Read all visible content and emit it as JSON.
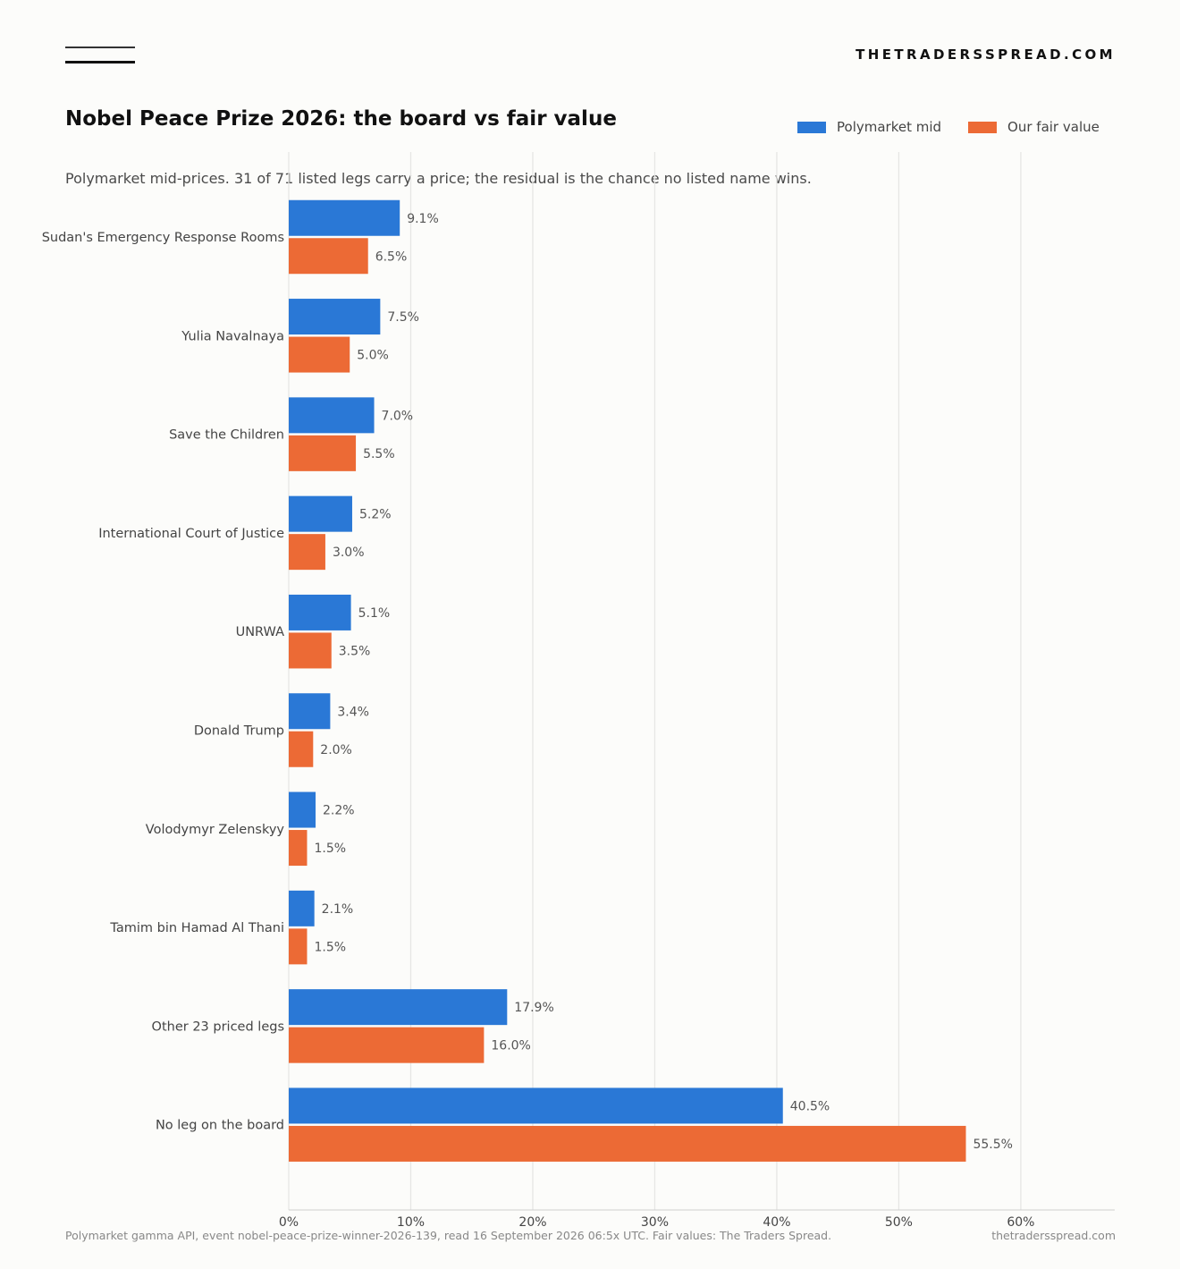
{
  "header": {
    "brand": "THETRADERSSPREAD.COM",
    "logo_icon": "double-line-icon"
  },
  "chart_data": {
    "type": "bar",
    "orientation": "horizontal",
    "title": "Nobel Peace Prize 2026: the board vs fair value",
    "subtitle": "Polymarket mid-prices. 31 of 71 listed legs carry a price; the residual is the chance no listed name wins.",
    "categories": [
      "Sudan's Emergency Response Rooms",
      "Yulia Navalnaya",
      "Save the Children",
      "International Court of Justice",
      "UNRWA",
      "Donald Trump",
      "Volodymyr Zelenskyy",
      "Tamim bin Hamad Al Thani",
      "Other 23 priced legs",
      "No leg on the board"
    ],
    "series": [
      {
        "name": "Polymarket mid",
        "color": "#2a78d6",
        "values": [
          9.1,
          7.5,
          7.0,
          5.2,
          5.1,
          3.4,
          2.2,
          2.1,
          17.9,
          40.5
        ]
      },
      {
        "name": "Our fair value",
        "color": "#ec6a35",
        "values": [
          6.5,
          5.0,
          5.5,
          3.0,
          3.5,
          2.0,
          1.5,
          1.5,
          16.0,
          55.5
        ]
      }
    ],
    "xlim": [
      0,
      67.7
    ],
    "xticks": [
      0,
      10,
      20,
      30,
      40,
      50,
      60
    ],
    "tick_suffix": "%",
    "value_suffix": "%",
    "grid": true,
    "legend_position": "top-right"
  },
  "footer": {
    "source": "Polymarket gamma API, event nobel-peace-prize-winner-2026-139, read 16 September 2026 06:5x UTC. Fair values: The Traders Spread.",
    "site": "thetradersspread.com"
  }
}
